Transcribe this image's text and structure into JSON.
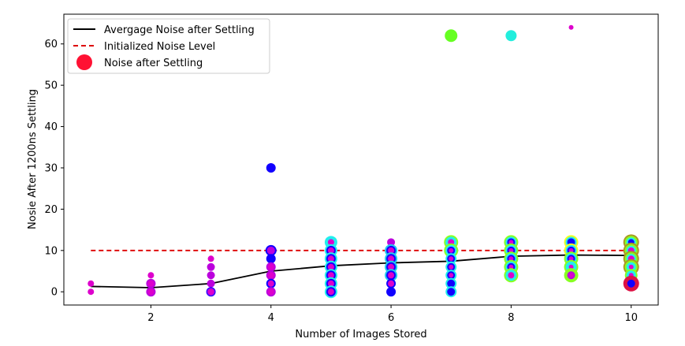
{
  "chart_data": {
    "type": "scatter",
    "xlabel": "Number of Images Stored",
    "ylabel": "Nosie After 1200ns Settling",
    "xlim": [
      0.55,
      10.45
    ],
    "ylim": [
      -3.2,
      67.2
    ],
    "xticks": [
      2,
      4,
      6,
      8,
      10
    ],
    "yticks": [
      0,
      10,
      20,
      30,
      40,
      50,
      60
    ],
    "grid": false,
    "legend_placement": "top-left",
    "legend": {
      "avg": "Avergage Noise after Settling",
      "init": "Initialized Noise Level",
      "noise": "Noise after Settling"
    },
    "colors": {
      "avg": "#000000",
      "init": "#dd0000",
      "legend_marker": "#ff1133"
    },
    "series": [
      {
        "key": "avg",
        "type": "line",
        "x": [
          1,
          2,
          3,
          4,
          5,
          6,
          7,
          8,
          9,
          10
        ],
        "y": [
          1.3,
          1.0,
          2.0,
          5.0,
          6.3,
          7.0,
          7.4,
          8.6,
          8.9,
          8.8
        ]
      },
      {
        "key": "init",
        "type": "line",
        "style": "dashed",
        "x": [
          1,
          10
        ],
        "y": [
          10,
          10
        ]
      }
    ],
    "points": [
      {
        "x": 1,
        "y": 2,
        "size": 4,
        "color": "#dd00cc"
      },
      {
        "x": 1,
        "y": 0,
        "size": 4,
        "color": "#dd00cc"
      },
      {
        "x": 2,
        "y": 4,
        "size": 4,
        "color": "#dd00cc"
      },
      {
        "x": 2,
        "y": 2,
        "size": 6,
        "color": "#bb00dd"
      },
      {
        "x": 2,
        "y": 2,
        "size": 4,
        "color": "#dd00cc"
      },
      {
        "x": 2,
        "y": 0,
        "size": 6,
        "color": "#bb00dd"
      },
      {
        "x": 2,
        "y": 0,
        "size": 4,
        "color": "#dd00cc"
      },
      {
        "x": 3,
        "y": 8,
        "size": 4,
        "color": "#dd00cc"
      },
      {
        "x": 3,
        "y": 6,
        "size": 5,
        "color": "#bb00dd"
      },
      {
        "x": 3,
        "y": 4,
        "size": 5,
        "color": "#bb00dd"
      },
      {
        "x": 3,
        "y": 2,
        "size": 5,
        "color": "#bb00dd"
      },
      {
        "x": 3,
        "y": 0,
        "size": 6,
        "color": "#2200ff"
      },
      {
        "x": 3,
        "y": 0,
        "size": 5,
        "color": "#8800ee"
      },
      {
        "x": 3,
        "y": 0,
        "size": 4,
        "color": "#dd00cc"
      },
      {
        "x": 4,
        "y": 30,
        "size": 6,
        "color": "#1100ff"
      },
      {
        "x": 4,
        "y": 10,
        "size": 7,
        "color": "#1100ff"
      },
      {
        "x": 4,
        "y": 10,
        "size": 5,
        "color": "#bb00dd"
      },
      {
        "x": 4,
        "y": 8,
        "size": 6,
        "color": "#1100ff"
      },
      {
        "x": 4,
        "y": 6,
        "size": 6,
        "color": "#bb00dd"
      },
      {
        "x": 4,
        "y": 6,
        "size": 4,
        "color": "#dd00cc"
      },
      {
        "x": 4,
        "y": 4,
        "size": 6,
        "color": "#bb00dd"
      },
      {
        "x": 4,
        "y": 4,
        "size": 4,
        "color": "#dd00cc"
      },
      {
        "x": 4,
        "y": 2,
        "size": 6,
        "color": "#1100ff"
      },
      {
        "x": 4,
        "y": 2,
        "size": 4,
        "color": "#dd00cc"
      },
      {
        "x": 4,
        "y": 0,
        "size": 6,
        "color": "#bb00dd"
      },
      {
        "x": 4,
        "y": 0,
        "size": 4,
        "color": "#dd00cc"
      },
      {
        "x": 5,
        "y": 12,
        "size": 8,
        "color": "#22eeee"
      },
      {
        "x": 5,
        "y": 12,
        "size": 4,
        "color": "#dd00cc"
      },
      {
        "x": 5,
        "y": 10,
        "size": 8,
        "color": "#22eeee"
      },
      {
        "x": 5,
        "y": 10,
        "size": 6,
        "color": "#1100ff"
      },
      {
        "x": 5,
        "y": 10,
        "size": 4,
        "color": "#dd00cc"
      },
      {
        "x": 5,
        "y": 8,
        "size": 8,
        "color": "#22eeee"
      },
      {
        "x": 5,
        "y": 8,
        "size": 6,
        "color": "#1100ff"
      },
      {
        "x": 5,
        "y": 8,
        "size": 4,
        "color": "#dd00cc"
      },
      {
        "x": 5,
        "y": 6,
        "size": 8,
        "color": "#22eeee"
      },
      {
        "x": 5,
        "y": 6,
        "size": 6,
        "color": "#1100ff"
      },
      {
        "x": 5,
        "y": 6,
        "size": 4,
        "color": "#dd00cc"
      },
      {
        "x": 5,
        "y": 4,
        "size": 8,
        "color": "#22eeee"
      },
      {
        "x": 5,
        "y": 4,
        "size": 6,
        "color": "#1100ff"
      },
      {
        "x": 5,
        "y": 4,
        "size": 4,
        "color": "#dd00cc"
      },
      {
        "x": 5,
        "y": 2,
        "size": 8,
        "color": "#22eeee"
      },
      {
        "x": 5,
        "y": 2,
        "size": 6,
        "color": "#1100ff"
      },
      {
        "x": 5,
        "y": 2,
        "size": 4,
        "color": "#dd00cc"
      },
      {
        "x": 5,
        "y": 0,
        "size": 8,
        "color": "#22eeee"
      },
      {
        "x": 5,
        "y": 0,
        "size": 6,
        "color": "#1100ff"
      },
      {
        "x": 5,
        "y": 0,
        "size": 4,
        "color": "#dd00cc"
      },
      {
        "x": 6,
        "y": 12,
        "size": 5,
        "color": "#bb00dd"
      },
      {
        "x": 6,
        "y": 10,
        "size": 8,
        "color": "#22ccee"
      },
      {
        "x": 6,
        "y": 10,
        "size": 6,
        "color": "#1100ff"
      },
      {
        "x": 6,
        "y": 10,
        "size": 4,
        "color": "#dd00cc"
      },
      {
        "x": 6,
        "y": 8,
        "size": 8,
        "color": "#22ccee"
      },
      {
        "x": 6,
        "y": 8,
        "size": 6,
        "color": "#1100ff"
      },
      {
        "x": 6,
        "y": 8,
        "size": 4,
        "color": "#dd00cc"
      },
      {
        "x": 6,
        "y": 6,
        "size": 8,
        "color": "#22ccee"
      },
      {
        "x": 6,
        "y": 6,
        "size": 6,
        "color": "#1100ff"
      },
      {
        "x": 6,
        "y": 6,
        "size": 4,
        "color": "#dd00cc"
      },
      {
        "x": 6,
        "y": 4,
        "size": 8,
        "color": "#22ccee"
      },
      {
        "x": 6,
        "y": 4,
        "size": 6,
        "color": "#1100ff"
      },
      {
        "x": 6,
        "y": 4,
        "size": 4,
        "color": "#dd00cc"
      },
      {
        "x": 6,
        "y": 2,
        "size": 6,
        "color": "#1100ff"
      },
      {
        "x": 6,
        "y": 2,
        "size": 4,
        "color": "#dd00cc"
      },
      {
        "x": 6,
        "y": 0,
        "size": 6,
        "color": "#1100ff"
      },
      {
        "x": 7,
        "y": 62,
        "size": 8,
        "color": "#66ff22"
      },
      {
        "x": 7,
        "y": 12,
        "size": 9,
        "color": "#88ff22"
      },
      {
        "x": 7,
        "y": 12,
        "size": 7,
        "color": "#22eeee"
      },
      {
        "x": 7,
        "y": 12,
        "size": 4,
        "color": "#dd00cc"
      },
      {
        "x": 7,
        "y": 10,
        "size": 9,
        "color": "#88ff22"
      },
      {
        "x": 7,
        "y": 10,
        "size": 7,
        "color": "#22eeee"
      },
      {
        "x": 7,
        "y": 10,
        "size": 5,
        "color": "#1100ff"
      },
      {
        "x": 7,
        "y": 10,
        "size": 3,
        "color": "#dd00cc"
      },
      {
        "x": 7,
        "y": 8,
        "size": 7,
        "color": "#22eeee"
      },
      {
        "x": 7,
        "y": 8,
        "size": 5,
        "color": "#1100ff"
      },
      {
        "x": 7,
        "y": 8,
        "size": 3,
        "color": "#dd00cc"
      },
      {
        "x": 7,
        "y": 6,
        "size": 7,
        "color": "#22eeee"
      },
      {
        "x": 7,
        "y": 6,
        "size": 5,
        "color": "#1100ff"
      },
      {
        "x": 7,
        "y": 6,
        "size": 3,
        "color": "#dd00cc"
      },
      {
        "x": 7,
        "y": 4,
        "size": 7,
        "color": "#22eeee"
      },
      {
        "x": 7,
        "y": 4,
        "size": 5,
        "color": "#1100ff"
      },
      {
        "x": 7,
        "y": 4,
        "size": 3,
        "color": "#dd00cc"
      },
      {
        "x": 7,
        "y": 2,
        "size": 7,
        "color": "#22eeee"
      },
      {
        "x": 7,
        "y": 2,
        "size": 5,
        "color": "#1100ff"
      },
      {
        "x": 7,
        "y": 0,
        "size": 7,
        "color": "#22eeee"
      },
      {
        "x": 7,
        "y": 0,
        "size": 5,
        "color": "#1100ff"
      },
      {
        "x": 8,
        "y": 62,
        "size": 7,
        "color": "#22eedd"
      },
      {
        "x": 8,
        "y": 12,
        "size": 9,
        "color": "#88ff22"
      },
      {
        "x": 8,
        "y": 12,
        "size": 7,
        "color": "#22eeee"
      },
      {
        "x": 8,
        "y": 12,
        "size": 5,
        "color": "#1100ff"
      },
      {
        "x": 8,
        "y": 12,
        "size": 3,
        "color": "#dd00cc"
      },
      {
        "x": 8,
        "y": 10,
        "size": 9,
        "color": "#88ff22"
      },
      {
        "x": 8,
        "y": 10,
        "size": 7,
        "color": "#22eeee"
      },
      {
        "x": 8,
        "y": 10,
        "size": 5,
        "color": "#1100ff"
      },
      {
        "x": 8,
        "y": 10,
        "size": 3,
        "color": "#dd00cc"
      },
      {
        "x": 8,
        "y": 8,
        "size": 9,
        "color": "#88ff22"
      },
      {
        "x": 8,
        "y": 8,
        "size": 7,
        "color": "#22eeee"
      },
      {
        "x": 8,
        "y": 8,
        "size": 5,
        "color": "#1100ff"
      },
      {
        "x": 8,
        "y": 8,
        "size": 3,
        "color": "#dd00cc"
      },
      {
        "x": 8,
        "y": 6,
        "size": 9,
        "color": "#88ff22"
      },
      {
        "x": 8,
        "y": 6,
        "size": 7,
        "color": "#22eeee"
      },
      {
        "x": 8,
        "y": 6,
        "size": 5,
        "color": "#1100ff"
      },
      {
        "x": 8,
        "y": 6,
        "size": 3,
        "color": "#dd00cc"
      },
      {
        "x": 8,
        "y": 4,
        "size": 9,
        "color": "#88ff22"
      },
      {
        "x": 8,
        "y": 4,
        "size": 7,
        "color": "#22eeee"
      },
      {
        "x": 8,
        "y": 4,
        "size": 4,
        "color": "#dd00cc"
      },
      {
        "x": 9,
        "y": 64,
        "size": 3,
        "color": "#dd00cc"
      },
      {
        "x": 9,
        "y": 12,
        "size": 9,
        "color": "#eeff22"
      },
      {
        "x": 9,
        "y": 12,
        "size": 7,
        "color": "#22eeee"
      },
      {
        "x": 9,
        "y": 12,
        "size": 5,
        "color": "#1100ff"
      },
      {
        "x": 9,
        "y": 10,
        "size": 9,
        "color": "#eeff22"
      },
      {
        "x": 9,
        "y": 10,
        "size": 7,
        "color": "#22eeee"
      },
      {
        "x": 9,
        "y": 10,
        "size": 5,
        "color": "#1100ff"
      },
      {
        "x": 9,
        "y": 10,
        "size": 3,
        "color": "#dd00cc"
      },
      {
        "x": 9,
        "y": 8,
        "size": 9,
        "color": "#88ff22"
      },
      {
        "x": 9,
        "y": 8,
        "size": 7,
        "color": "#22eeee"
      },
      {
        "x": 9,
        "y": 8,
        "size": 5,
        "color": "#1100ff"
      },
      {
        "x": 9,
        "y": 8,
        "size": 3,
        "color": "#dd00cc"
      },
      {
        "x": 9,
        "y": 6,
        "size": 9,
        "color": "#88ff22"
      },
      {
        "x": 9,
        "y": 6,
        "size": 7,
        "color": "#22eeee"
      },
      {
        "x": 9,
        "y": 6,
        "size": 3,
        "color": "#dd00cc"
      },
      {
        "x": 9,
        "y": 4,
        "size": 9,
        "color": "#88ff22"
      },
      {
        "x": 9,
        "y": 4,
        "size": 5,
        "color": "#bb00dd"
      },
      {
        "x": 9,
        "y": 4,
        "size": 3,
        "color": "#dd00cc"
      },
      {
        "x": 10,
        "y": 12,
        "size": 10,
        "color": "#aa9922"
      },
      {
        "x": 10,
        "y": 12,
        "size": 8,
        "color": "#88ff22"
      },
      {
        "x": 10,
        "y": 12,
        "size": 6,
        "color": "#22eeee"
      },
      {
        "x": 10,
        "y": 12,
        "size": 4,
        "color": "#1100ff"
      },
      {
        "x": 10,
        "y": 10,
        "size": 10,
        "color": "#aa9922"
      },
      {
        "x": 10,
        "y": 10,
        "size": 8,
        "color": "#88ff22"
      },
      {
        "x": 10,
        "y": 10,
        "size": 6,
        "color": "#22eeee"
      },
      {
        "x": 10,
        "y": 10,
        "size": 4,
        "color": "#dd00cc"
      },
      {
        "x": 10,
        "y": 8,
        "size": 10,
        "color": "#aa9922"
      },
      {
        "x": 10,
        "y": 8,
        "size": 8,
        "color": "#88ff22"
      },
      {
        "x": 10,
        "y": 8,
        "size": 6,
        "color": "#22eeee"
      },
      {
        "x": 10,
        "y": 8,
        "size": 4,
        "color": "#dd00cc"
      },
      {
        "x": 10,
        "y": 6,
        "size": 10,
        "color": "#aa9922"
      },
      {
        "x": 10,
        "y": 6,
        "size": 8,
        "color": "#88ff22"
      },
      {
        "x": 10,
        "y": 6,
        "size": 6,
        "color": "#22eeee"
      },
      {
        "x": 10,
        "y": 6,
        "size": 3,
        "color": "#dd00cc"
      },
      {
        "x": 10,
        "y": 4,
        "size": 8,
        "color": "#88ff22"
      },
      {
        "x": 10,
        "y": 4,
        "size": 6,
        "color": "#22eeee"
      },
      {
        "x": 10,
        "y": 4,
        "size": 3,
        "color": "#dd00cc"
      },
      {
        "x": 10,
        "y": 2,
        "size": 10,
        "color": "#dd1144"
      },
      {
        "x": 10,
        "y": 2,
        "size": 5,
        "color": "#1100ff"
      }
    ]
  }
}
